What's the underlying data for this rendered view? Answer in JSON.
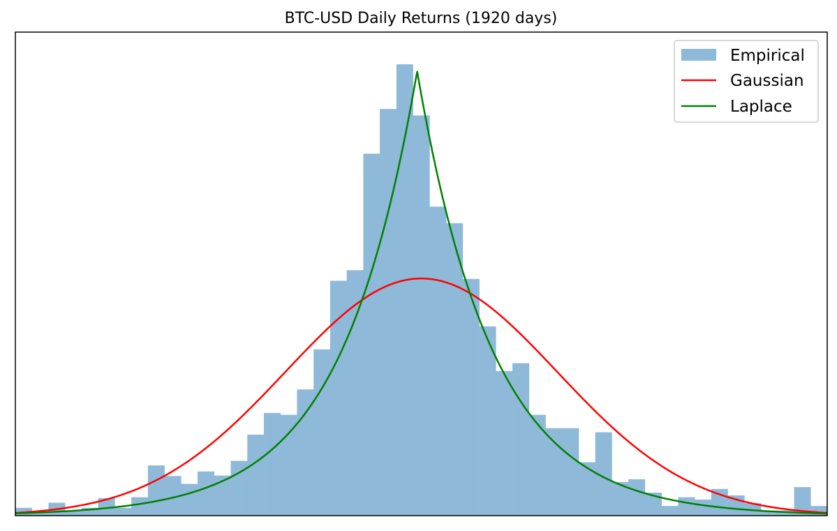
{
  "chart_data": {
    "type": "bar",
    "title": "BTC-USD Daily Returns (1920 days)",
    "xlabel": "",
    "ylabel": "",
    "ylim": [
      0,
      1.05
    ],
    "grid": false,
    "axis_ticks": false,
    "legend_position": "top-right",
    "series": [
      {
        "name": "Empirical",
        "kind": "histogram",
        "color": "#8fb9d8",
        "values": [
          0.017,
          0.008,
          0.028,
          0.011,
          0.017,
          0.038,
          0.017,
          0.04,
          0.109,
          0.086,
          0.069,
          0.096,
          0.087,
          0.119,
          0.176,
          0.223,
          0.219,
          0.274,
          0.361,
          0.51,
          0.533,
          0.786,
          0.883,
          0.98,
          0.869,
          0.671,
          0.635,
          0.514,
          0.411,
          0.314,
          0.331,
          0.219,
          0.19,
          0.19,
          0.116,
          0.181,
          0.073,
          0.079,
          0.05,
          0.021,
          0.04,
          0.035,
          0.058,
          0.044,
          0.027,
          0.011,
          0.011,
          0.062,
          0.021
        ]
      },
      {
        "name": "Gaussian",
        "kind": "curve",
        "distribution": "normal",
        "color": "#ff0000",
        "peak_bin": 24.5,
        "sigma_bins": 8.2,
        "peak": 0.515
      },
      {
        "name": "Laplace",
        "kind": "curve",
        "distribution": "laplace",
        "color": "#008000",
        "peak_bin": 24.25,
        "scale_bins": 4.6,
        "peak": 0.965
      }
    ]
  }
}
